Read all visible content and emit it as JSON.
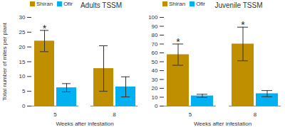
{
  "chart_data": [
    {
      "type": "bar",
      "title": "Adults TSSM",
      "categories": [
        "5",
        "8"
      ],
      "x_label": "Weeks after infestation",
      "y_label": "Total number of mites per plant",
      "series": [
        {
          "name": "Shiran",
          "color": "#bf8f00",
          "values": [
            22,
            12.7
          ],
          "errors": [
            3.6,
            7.7
          ]
        },
        {
          "name": "Ofir",
          "color": "#00b0f0",
          "values": [
            6.2,
            6.5
          ],
          "errors": [
            1.4,
            3.4
          ]
        }
      ],
      "ylim": [
        0,
        30
      ],
      "yticks": [
        0,
        5,
        10,
        15,
        20,
        25,
        30
      ],
      "legend": "top-left",
      "annotations": [
        {
          "text": "*",
          "category": "5",
          "series": "Shiran"
        }
      ]
    },
    {
      "type": "bar",
      "title": "Juvenile TSSM",
      "categories": [
        "5",
        "8"
      ],
      "x_label": "Weeks after infestation",
      "series": [
        {
          "name": "Shiran",
          "color": "#bf8f00",
          "values": [
            58,
            70
          ],
          "errors": [
            12,
            19
          ]
        },
        {
          "name": "Ofir",
          "color": "#00b0f0",
          "values": [
            11.5,
            14
          ],
          "errors": [
            1.8,
            3.5
          ]
        }
      ],
      "ylim": [
        0,
        100
      ],
      "yticks": [
        0,
        10,
        20,
        30,
        40,
        50,
        60,
        70,
        80,
        90,
        100
      ],
      "legend": "top-left",
      "annotations": [
        {
          "text": "*",
          "category": "5",
          "series": "Shiran"
        },
        {
          "text": "*",
          "category": "8",
          "series": "Shiran"
        }
      ]
    }
  ]
}
